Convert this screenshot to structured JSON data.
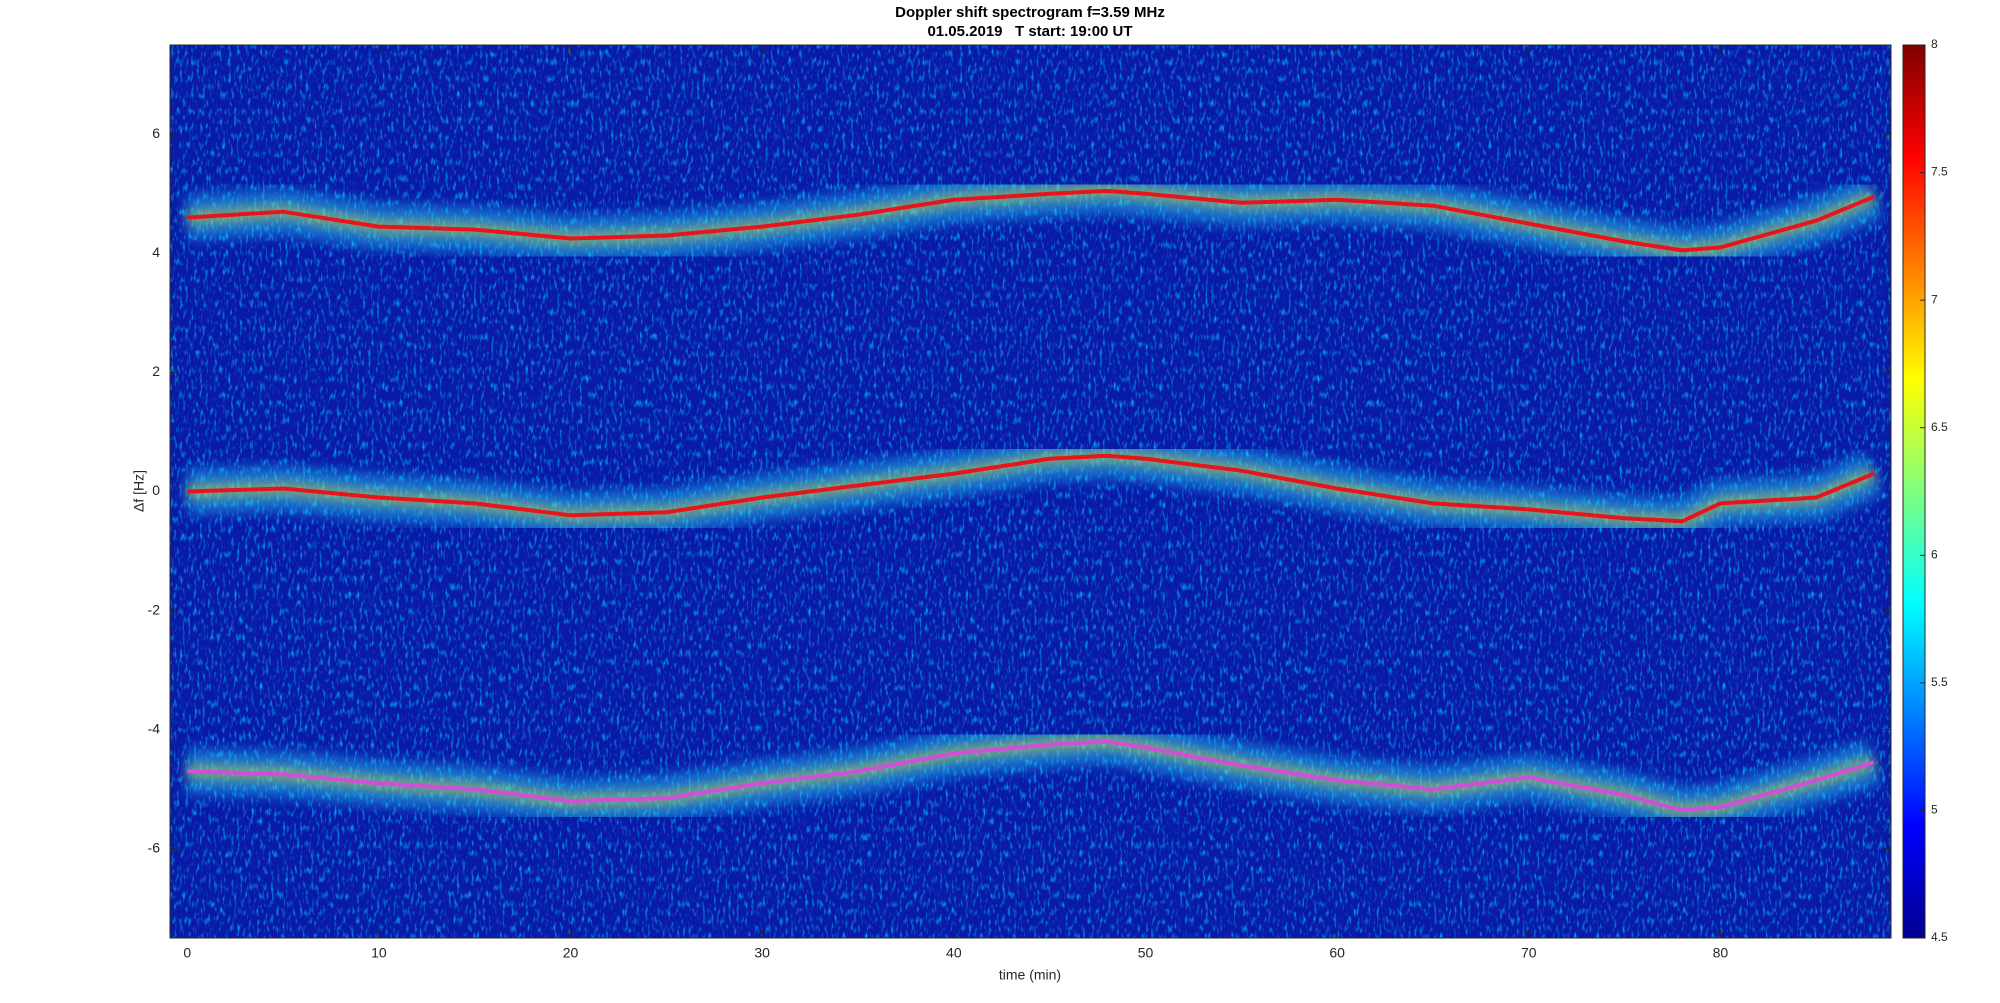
{
  "chart_data": {
    "type": "spectrogram",
    "title": "Doppler shift spectrogram f=3.59 MHz",
    "subtitle": "01.05.2019   T start: 19:00 UT",
    "x_label": "time (min)",
    "y_label": "Δf [Hz]",
    "xlim": [
      -0.9,
      88.9
    ],
    "ylim": [
      -7.5,
      7.5
    ],
    "xticks": [
      0,
      10,
      20,
      30,
      40,
      50,
      60,
      70,
      80
    ],
    "yticks": [
      -6,
      -4,
      -2,
      0,
      2,
      4,
      6
    ],
    "colormap": "jet",
    "clim": [
      4.5,
      8
    ],
    "cticks": [
      4.5,
      5,
      5.5,
      6,
      6.5,
      7,
      7.5,
      8
    ],
    "x": [
      0,
      5,
      10,
      15,
      20,
      25,
      30,
      35,
      40,
      45,
      48,
      50,
      55,
      60,
      65,
      70,
      75,
      78,
      80,
      85,
      88
    ],
    "series": [
      {
        "color": "#e8141c",
        "values": [
          4.6,
          4.7,
          4.45,
          4.4,
          4.25,
          4.3,
          4.45,
          4.65,
          4.9,
          5.0,
          5.05,
          5.0,
          4.85,
          4.9,
          4.8,
          4.5,
          4.2,
          4.05,
          4.1,
          4.55,
          4.95
        ]
      },
      {
        "color": "#e8141c",
        "values": [
          0,
          0.05,
          -0.1,
          -0.2,
          -0.4,
          -0.35,
          -0.1,
          0.1,
          0.3,
          0.55,
          0.6,
          0.55,
          0.35,
          0.05,
          -0.2,
          -0.3,
          -0.45,
          -0.5,
          -0.2,
          -0.1,
          0.3
        ]
      },
      {
        "color": "#d04fd8",
        "values": [
          -4.7,
          -4.75,
          -4.9,
          -5.0,
          -5.2,
          -5.15,
          -4.9,
          -4.7,
          -4.4,
          -4.25,
          -4.2,
          -4.3,
          -4.6,
          -4.85,
          -5.0,
          -4.8,
          -5.1,
          -5.35,
          -5.3,
          -4.85,
          -4.55
        ]
      }
    ]
  }
}
